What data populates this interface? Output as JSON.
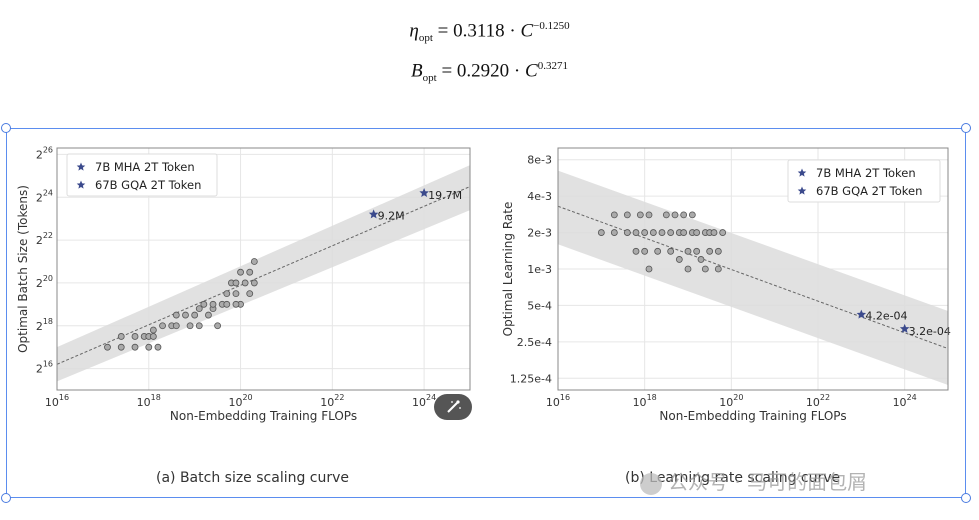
{
  "formulas": {
    "eta": {
      "symbol": "η",
      "sub": "opt",
      "rhs": " = 0.3118 · ",
      "base": "C",
      "exp": "−0.1250"
    },
    "batch": {
      "symbol": "B",
      "sub": "opt",
      "rhs": " = 0.2920 · ",
      "base": "C",
      "exp": "0.3271"
    }
  },
  "captions": {
    "a": "(a) Batch size scaling curve",
    "b": "(b) Learning rate scaling curve"
  },
  "watermark": "公众号 · 马可的面包屑",
  "colors": {
    "star": "#3b4a8c",
    "band": "#dcdcdc",
    "dot_fill": "#aaaaaa",
    "dot_stroke": "#555555",
    "grid": "#e6e6e6"
  },
  "chart_data": [
    {
      "type": "scatter",
      "title": "(a) Batch size scaling curve",
      "xlabel": "Non-Embedding Training FLOPs",
      "ylabel": "Optimal Batch Size (Tokens)",
      "x_scale": "log10",
      "y_scale": "log2",
      "xlim_exp": [
        16,
        25
      ],
      "ylim_exp": [
        15,
        26.3
      ],
      "x_ticks": [
        {
          "exp": 16,
          "label_base": "10",
          "label_exp": "16"
        },
        {
          "exp": 18,
          "label_base": "10",
          "label_exp": "18"
        },
        {
          "exp": 20,
          "label_base": "10",
          "label_exp": "20"
        },
        {
          "exp": 22,
          "label_base": "10",
          "label_exp": "22"
        },
        {
          "exp": 24,
          "label_base": "10",
          "label_exp": "24"
        }
      ],
      "y_ticks": [
        {
          "exp": 16,
          "label_base": "2",
          "label_exp": "16"
        },
        {
          "exp": 18,
          "label_base": "2",
          "label_exp": "18"
        },
        {
          "exp": 20,
          "label_base": "2",
          "label_exp": "20"
        },
        {
          "exp": 22,
          "label_base": "2",
          "label_exp": "22"
        },
        {
          "exp": 24,
          "label_base": "2",
          "label_exp": "24"
        },
        {
          "exp": 26,
          "label_base": "2",
          "label_exp": "26"
        }
      ],
      "fit_line": {
        "x_exp": [
          16,
          25
        ],
        "y_exp": [
          16.2,
          24.5
        ]
      },
      "band": {
        "upper_exp": [
          17.0,
          25.5
        ],
        "lower_exp": [
          15.4,
          23.4
        ]
      },
      "points": [
        {
          "x_exp": 17.1,
          "y_exp": 17.0
        },
        {
          "x_exp": 17.4,
          "y_exp": 17.0
        },
        {
          "x_exp": 17.4,
          "y_exp": 17.5
        },
        {
          "x_exp": 17.7,
          "y_exp": 17.0
        },
        {
          "x_exp": 17.7,
          "y_exp": 17.5
        },
        {
          "x_exp": 17.9,
          "y_exp": 17.5
        },
        {
          "x_exp": 18.0,
          "y_exp": 17.5
        },
        {
          "x_exp": 18.0,
          "y_exp": 17.0
        },
        {
          "x_exp": 18.1,
          "y_exp": 17.8
        },
        {
          "x_exp": 18.1,
          "y_exp": 17.5
        },
        {
          "x_exp": 18.2,
          "y_exp": 17.0
        },
        {
          "x_exp": 18.3,
          "y_exp": 18.0
        },
        {
          "x_exp": 18.5,
          "y_exp": 18.0
        },
        {
          "x_exp": 18.6,
          "y_exp": 18.0
        },
        {
          "x_exp": 18.6,
          "y_exp": 18.5
        },
        {
          "x_exp": 18.8,
          "y_exp": 18.5
        },
        {
          "x_exp": 18.9,
          "y_exp": 18.0
        },
        {
          "x_exp": 19.0,
          "y_exp": 18.5
        },
        {
          "x_exp": 19.1,
          "y_exp": 18.0
        },
        {
          "x_exp": 19.1,
          "y_exp": 18.8
        },
        {
          "x_exp": 19.2,
          "y_exp": 19.0
        },
        {
          "x_exp": 19.3,
          "y_exp": 18.5
        },
        {
          "x_exp": 19.4,
          "y_exp": 18.8
        },
        {
          "x_exp": 19.4,
          "y_exp": 19.0
        },
        {
          "x_exp": 19.5,
          "y_exp": 18.0
        },
        {
          "x_exp": 19.6,
          "y_exp": 19.0
        },
        {
          "x_exp": 19.7,
          "y_exp": 19.5
        },
        {
          "x_exp": 19.7,
          "y_exp": 19.0
        },
        {
          "x_exp": 19.8,
          "y_exp": 20.0
        },
        {
          "x_exp": 19.9,
          "y_exp": 19.5
        },
        {
          "x_exp": 20.0,
          "y_exp": 19.0
        },
        {
          "x_exp": 19.9,
          "y_exp": 20.0
        },
        {
          "x_exp": 20.0,
          "y_exp": 20.5
        },
        {
          "x_exp": 20.1,
          "y_exp": 20.0
        },
        {
          "x_exp": 20.2,
          "y_exp": 20.5
        },
        {
          "x_exp": 20.3,
          "y_exp": 21.0
        },
        {
          "x_exp": 19.9,
          "y_exp": 19.0
        },
        {
          "x_exp": 20.2,
          "y_exp": 19.5
        },
        {
          "x_exp": 20.3,
          "y_exp": 20.0
        }
      ],
      "highlights": [
        {
          "name": "7B MHA 2T Token",
          "x_exp": 22.9,
          "y_exp": 23.2,
          "label": "9.2M"
        },
        {
          "name": "67B GQA 2T Token",
          "x_exp": 24.0,
          "y_exp": 24.2,
          "label": "19.7M"
        }
      ],
      "legend": {
        "position": "top-left",
        "entries": [
          "7B MHA 2T Token",
          "67B GQA 2T Token"
        ]
      }
    },
    {
      "type": "scatter",
      "title": "(b) Learning rate scaling curve",
      "xlabel": "Non-Embedding Training FLOPs",
      "ylabel": "Optimal Learning Rate",
      "x_scale": "log10",
      "y_scale": "log2",
      "xlim_exp": [
        16,
        25
      ],
      "ylim": [
        0.0001,
        0.01
      ],
      "x_ticks": [
        {
          "exp": 16,
          "label_base": "10",
          "label_exp": "16"
        },
        {
          "exp": 18,
          "label_base": "10",
          "label_exp": "18"
        },
        {
          "exp": 20,
          "label_base": "10",
          "label_exp": "20"
        },
        {
          "exp": 22,
          "label_base": "10",
          "label_exp": "22"
        },
        {
          "exp": 24,
          "label_base": "10",
          "label_exp": "24"
        }
      ],
      "y_ticks": [
        {
          "value": 0.008,
          "label": "8e-3"
        },
        {
          "value": 0.004,
          "label": "4e-3"
        },
        {
          "value": 0.002,
          "label": "2e-3"
        },
        {
          "value": 0.001,
          "label": "1e-3"
        },
        {
          "value": 0.0005,
          "label": "5e-4"
        },
        {
          "value": 0.00025,
          "label": "2.5e-4"
        },
        {
          "value": 0.000125,
          "label": "1.25e-4"
        }
      ],
      "fit_line": {
        "x_exp": [
          16,
          25
        ],
        "y": [
          0.0033,
          0.00022
        ]
      },
      "band": {
        "upper": [
          0.0065,
          0.00045
        ],
        "lower": [
          0.0016,
          0.00011
        ]
      },
      "points": [
        {
          "x_exp": 17.0,
          "y": 0.002
        },
        {
          "x_exp": 17.3,
          "y": 0.002
        },
        {
          "x_exp": 17.3,
          "y": 0.0028
        },
        {
          "x_exp": 17.6,
          "y": 0.002
        },
        {
          "x_exp": 17.6,
          "y": 0.0028
        },
        {
          "x_exp": 17.8,
          "y": 0.0014
        },
        {
          "x_exp": 17.8,
          "y": 0.002
        },
        {
          "x_exp": 17.9,
          "y": 0.0028
        },
        {
          "x_exp": 18.0,
          "y": 0.002
        },
        {
          "x_exp": 18.0,
          "y": 0.0014
        },
        {
          "x_exp": 18.1,
          "y": 0.001
        },
        {
          "x_exp": 18.1,
          "y": 0.0028
        },
        {
          "x_exp": 18.2,
          "y": 0.002
        },
        {
          "x_exp": 18.3,
          "y": 0.0014
        },
        {
          "x_exp": 18.4,
          "y": 0.002
        },
        {
          "x_exp": 18.5,
          "y": 0.0028
        },
        {
          "x_exp": 18.6,
          "y": 0.002
        },
        {
          "x_exp": 18.6,
          "y": 0.0014
        },
        {
          "x_exp": 18.7,
          "y": 0.0028
        },
        {
          "x_exp": 18.8,
          "y": 0.002
        },
        {
          "x_exp": 18.8,
          "y": 0.0012
        },
        {
          "x_exp": 18.9,
          "y": 0.002
        },
        {
          "x_exp": 18.9,
          "y": 0.0028
        },
        {
          "x_exp": 19.0,
          "y": 0.0014
        },
        {
          "x_exp": 19.0,
          "y": 0.001
        },
        {
          "x_exp": 19.1,
          "y": 0.002
        },
        {
          "x_exp": 19.1,
          "y": 0.0028
        },
        {
          "x_exp": 19.2,
          "y": 0.0014
        },
        {
          "x_exp": 19.2,
          "y": 0.002
        },
        {
          "x_exp": 19.3,
          "y": 0.0012
        },
        {
          "x_exp": 19.4,
          "y": 0.002
        },
        {
          "x_exp": 19.4,
          "y": 0.001
        },
        {
          "x_exp": 19.5,
          "y": 0.0014
        },
        {
          "x_exp": 19.5,
          "y": 0.002
        },
        {
          "x_exp": 19.6,
          "y": 0.002
        },
        {
          "x_exp": 19.7,
          "y": 0.0014
        },
        {
          "x_exp": 19.7,
          "y": 0.001
        },
        {
          "x_exp": 19.8,
          "y": 0.002
        }
      ],
      "highlights": [
        {
          "name": "7B MHA 2T Token",
          "x_exp": 23.0,
          "y": 0.00042,
          "label": "4.2e-04"
        },
        {
          "name": "67B GQA 2T Token",
          "x_exp": 24.0,
          "y": 0.00032,
          "label": "3.2e-04"
        }
      ],
      "legend": {
        "position": "top-right",
        "entries": [
          "7B MHA 2T Token",
          "67B GQA 2T Token"
        ]
      }
    }
  ]
}
